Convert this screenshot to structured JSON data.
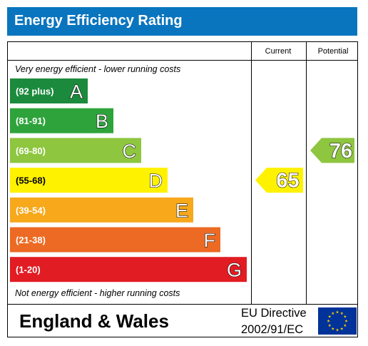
{
  "header": {
    "title": "Energy Efficiency Rating"
  },
  "columns": {
    "current": "Current",
    "potential": "Potential"
  },
  "bands": {
    "top_text": "Very energy efficient - lower running costs",
    "bottom_text": "Not energy efficient - higher running costs"
  },
  "chart_data": {
    "type": "bar",
    "title": "Energy Efficiency Rating",
    "categories": [
      "A",
      "B",
      "C",
      "D",
      "E",
      "F",
      "G"
    ],
    "ranges": [
      "(92 plus)",
      "(81-91)",
      "(69-80)",
      "(55-68)",
      "(39-54)",
      "(21-38)",
      "(1-20)"
    ],
    "colors": [
      "#008054",
      "#19b459",
      "#8dce46",
      "#ffd500",
      "#fcaa65",
      "#ef8023",
      "#e9153b"
    ],
    "display_colors": [
      "#1b8a3c",
      "#2ea33b",
      "#8ec63f",
      "#fff200",
      "#f7a81b",
      "#ec6a23",
      "#e21c23"
    ],
    "current": {
      "label": "Current",
      "value": 65,
      "band": "D"
    },
    "potential": {
      "label": "Potential",
      "value": 76,
      "band": "C"
    }
  },
  "footer": {
    "region": "England & Wales",
    "directive_line1": "EU Directive",
    "directive_line2": "2002/91/EC"
  }
}
